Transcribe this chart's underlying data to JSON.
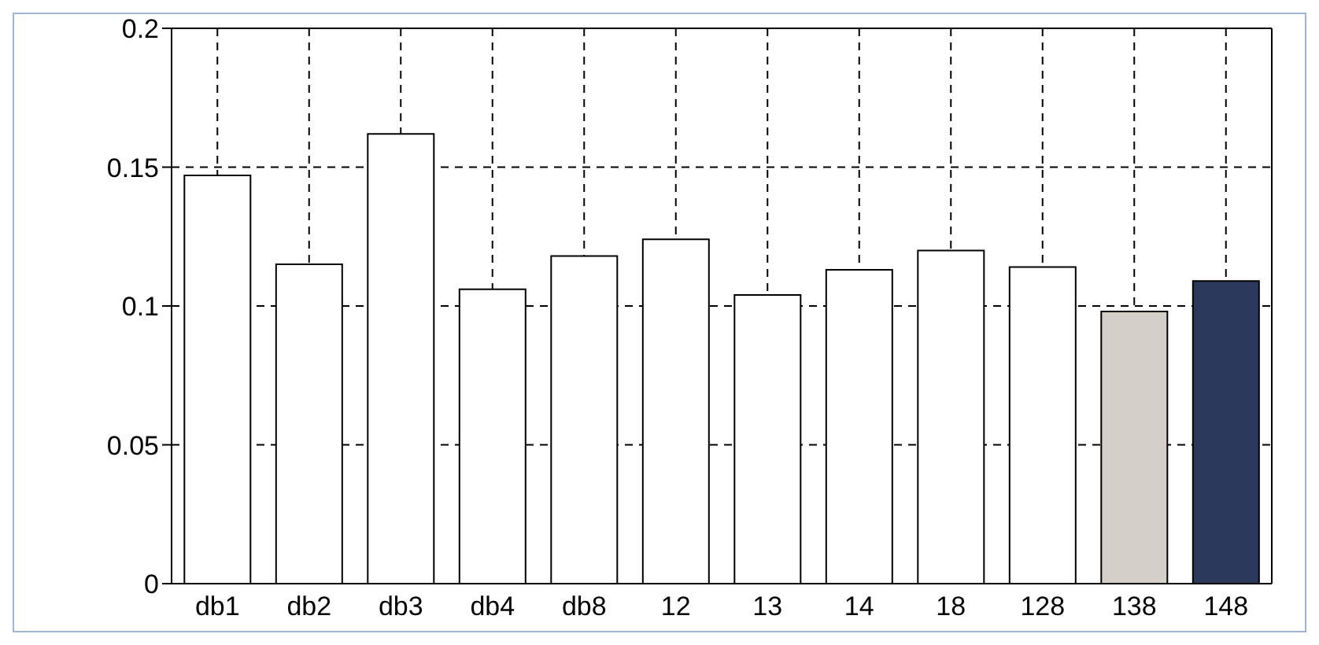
{
  "chart_data": {
    "type": "bar",
    "categories": [
      "db1",
      "db2",
      "db3",
      "db4",
      "db8",
      "12",
      "13",
      "14",
      "18",
      "128",
      "138",
      "148"
    ],
    "values": [
      0.147,
      0.115,
      0.162,
      0.106,
      0.118,
      0.124,
      0.104,
      0.113,
      0.12,
      0.114,
      0.098,
      0.109
    ],
    "colors": [
      "#ffffff",
      "#ffffff",
      "#ffffff",
      "#ffffff",
      "#ffffff",
      "#ffffff",
      "#ffffff",
      "#ffffff",
      "#ffffff",
      "#ffffff",
      "#d4d0c8",
      "#2b3a5c"
    ],
    "ylim": [
      0,
      0.2
    ],
    "yticks": [
      0,
      0.05,
      0.1,
      0.15,
      0.2
    ],
    "grid": true
  }
}
